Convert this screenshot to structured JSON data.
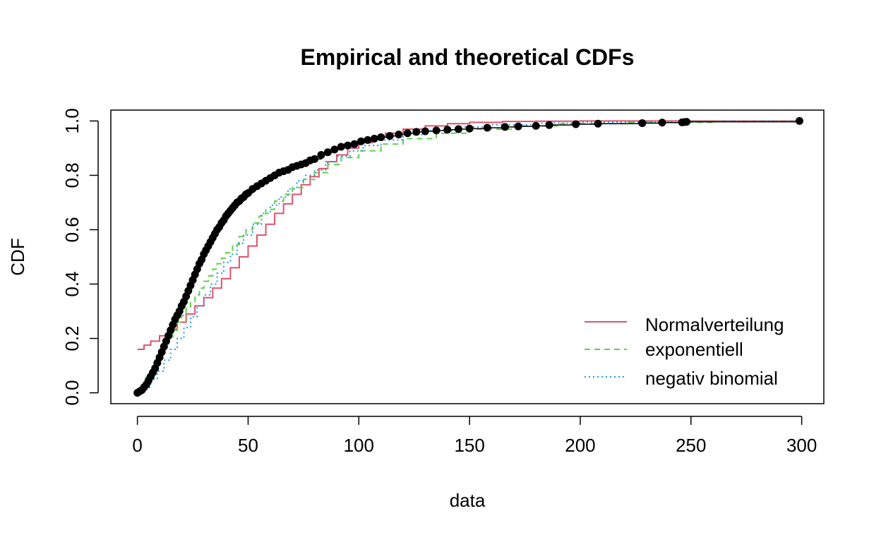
{
  "chart_data": {
    "type": "line",
    "title": "Empirical and theoretical CDFs",
    "xlabel": "data",
    "ylabel": "CDF",
    "xlim": [
      -12,
      310
    ],
    "ylim": [
      -0.04,
      1.04
    ],
    "x_ticks": [
      0,
      50,
      100,
      150,
      200,
      250,
      300
    ],
    "y_ticks": [
      0.0,
      0.2,
      0.4,
      0.6,
      0.8,
      1.0
    ],
    "x_tick_labels": [
      "0",
      "50",
      "100",
      "150",
      "200",
      "250",
      "300"
    ],
    "y_tick_labels": [
      "0.0",
      "0.2",
      "0.4",
      "0.6",
      "0.8",
      "1.0"
    ],
    "grid": false,
    "legend_position": "bottom-right",
    "empirical": {
      "style": "points",
      "color": "#000000",
      "x": [
        0,
        1,
        2,
        3,
        4,
        5,
        6,
        7,
        8,
        9,
        10,
        11,
        12,
        13,
        14,
        15,
        16,
        17,
        18,
        19,
        20,
        21,
        22,
        23,
        24,
        25,
        26,
        27,
        28,
        29,
        30,
        31,
        32,
        33,
        34,
        35,
        36,
        37,
        38,
        39,
        40,
        41,
        42,
        43,
        44,
        45,
        46,
        47,
        48,
        49,
        50,
        52,
        54,
        56,
        58,
        60,
        62,
        64,
        66,
        68,
        70,
        72,
        74,
        76,
        78,
        80,
        83,
        86,
        89,
        92,
        95,
        98,
        101,
        104,
        107,
        110,
        114,
        118,
        122,
        126,
        130,
        135,
        140,
        145,
        150,
        158,
        166,
        172,
        180,
        186,
        198,
        208,
        228,
        237,
        246,
        247,
        248,
        299
      ],
      "y": [
        0.0,
        0.005,
        0.01,
        0.02,
        0.03,
        0.045,
        0.06,
        0.075,
        0.09,
        0.11,
        0.13,
        0.15,
        0.17,
        0.19,
        0.21,
        0.23,
        0.25,
        0.27,
        0.285,
        0.3,
        0.32,
        0.335,
        0.355,
        0.375,
        0.395,
        0.415,
        0.435,
        0.455,
        0.475,
        0.49,
        0.51,
        0.525,
        0.54,
        0.555,
        0.57,
        0.585,
        0.6,
        0.61,
        0.625,
        0.635,
        0.65,
        0.66,
        0.67,
        0.68,
        0.69,
        0.7,
        0.705,
        0.715,
        0.72,
        0.73,
        0.735,
        0.75,
        0.76,
        0.77,
        0.78,
        0.79,
        0.8,
        0.81,
        0.815,
        0.82,
        0.83,
        0.835,
        0.84,
        0.845,
        0.855,
        0.86,
        0.875,
        0.885,
        0.895,
        0.905,
        0.91,
        0.915,
        0.925,
        0.93,
        0.935,
        0.94,
        0.945,
        0.95,
        0.955,
        0.96,
        0.962,
        0.965,
        0.968,
        0.97,
        0.972,
        0.975,
        0.978,
        0.98,
        0.982,
        0.985,
        0.988,
        0.99,
        0.992,
        0.994,
        0.995,
        0.996,
        0.997,
        1.0
      ]
    },
    "series": [
      {
        "name": "Normalverteilung",
        "color": "#DF536B",
        "dash": "solid",
        "step": true,
        "x": [
          0,
          3,
          6,
          10,
          14,
          18,
          22,
          26,
          30,
          34,
          38,
          42,
          46,
          50,
          54,
          58,
          62,
          66,
          70,
          74,
          78,
          82,
          86,
          90,
          95,
          100,
          106,
          112,
          120,
          130,
          140,
          150,
          165,
          180,
          200,
          300
        ],
        "y": [
          0.16,
          0.175,
          0.19,
          0.21,
          0.235,
          0.26,
          0.29,
          0.32,
          0.35,
          0.385,
          0.42,
          0.46,
          0.5,
          0.54,
          0.58,
          0.62,
          0.66,
          0.695,
          0.73,
          0.765,
          0.795,
          0.825,
          0.85,
          0.875,
          0.9,
          0.92,
          0.94,
          0.955,
          0.97,
          0.982,
          0.99,
          0.995,
          0.998,
          0.999,
          1.0,
          1.0
        ]
      },
      {
        "name": "exponentiell",
        "color": "#61D04F",
        "dash": "dashed",
        "step": true,
        "x": [
          0,
          2,
          4,
          6,
          8,
          10,
          12,
          14,
          16,
          18,
          20,
          22,
          24,
          26,
          28,
          30,
          32,
          34,
          36,
          38,
          40,
          43,
          46,
          49,
          52,
          55,
          58,
          62,
          66,
          70,
          75,
          80,
          86,
          92,
          100,
          110,
          120,
          135,
          150,
          170,
          190,
          220,
          260,
          300
        ],
        "y": [
          0.0,
          0.03,
          0.06,
          0.09,
          0.12,
          0.15,
          0.18,
          0.205,
          0.23,
          0.26,
          0.285,
          0.31,
          0.335,
          0.36,
          0.385,
          0.41,
          0.43,
          0.455,
          0.475,
          0.495,
          0.515,
          0.545,
          0.575,
          0.6,
          0.625,
          0.65,
          0.675,
          0.705,
          0.73,
          0.755,
          0.785,
          0.81,
          0.84,
          0.865,
          0.89,
          0.915,
          0.935,
          0.955,
          0.97,
          0.982,
          0.99,
          0.995,
          0.998,
          1.0
        ]
      },
      {
        "name": "negativ binomial",
        "color": "#2297E6",
        "dash": "dotted",
        "step": true,
        "x": [
          0,
          3,
          6,
          9,
          12,
          15,
          18,
          21,
          24,
          27,
          30,
          33,
          36,
          39,
          42,
          45,
          48,
          52,
          56,
          60,
          64,
          68,
          72,
          76,
          80,
          85,
          90,
          96,
          102,
          110,
          120,
          130,
          145,
          160,
          180,
          200,
          240,
          300
        ],
        "y": [
          0.0,
          0.02,
          0.05,
          0.08,
          0.12,
          0.16,
          0.2,
          0.24,
          0.28,
          0.32,
          0.36,
          0.4,
          0.44,
          0.48,
          0.51,
          0.55,
          0.58,
          0.62,
          0.66,
          0.69,
          0.72,
          0.75,
          0.78,
          0.8,
          0.82,
          0.85,
          0.87,
          0.89,
          0.91,
          0.93,
          0.95,
          0.965,
          0.978,
          0.986,
          0.992,
          0.996,
          0.999,
          1.0
        ]
      }
    ]
  }
}
